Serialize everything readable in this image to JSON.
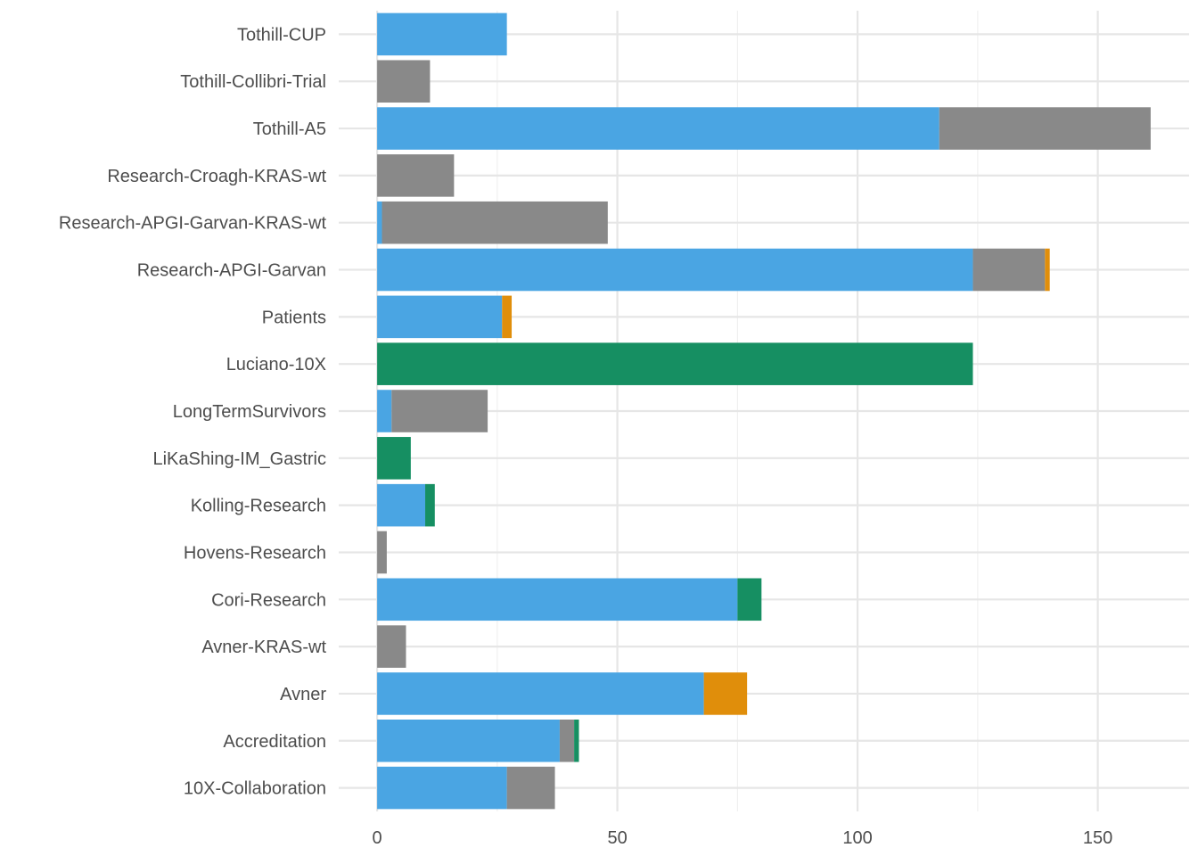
{
  "chart_data": {
    "type": "bar",
    "orientation": "horizontal",
    "stacked": true,
    "categories": [
      "Tothill-CUP",
      "Tothill-Collibri-Trial",
      "Tothill-A5",
      "Research-Croagh-KRAS-wt",
      "Research-APGI-Garvan-KRAS-wt",
      "Research-APGI-Garvan",
      "Patients",
      "Luciano-10X",
      "LongTermSurvivors",
      "LiKaShing-IM_Gastric",
      "Kolling-Research",
      "Hovens-Research",
      "Cori-Research",
      "Avner-KRAS-wt",
      "Avner",
      "Accreditation",
      "10X-Collaboration"
    ],
    "series": [
      {
        "color": "#4aa5e3",
        "values": [
          27,
          0,
          117,
          0,
          1,
          124,
          26,
          0,
          3,
          0,
          10,
          0,
          75,
          0,
          68,
          38,
          27
        ]
      },
      {
        "color": "#898989",
        "values": [
          0,
          11,
          44,
          16,
          47,
          15,
          0,
          0,
          20,
          0,
          0,
          2,
          0,
          6,
          0,
          3,
          10
        ]
      },
      {
        "color": "#e08e0b",
        "values": [
          0,
          0,
          0,
          0,
          0,
          1,
          2,
          0,
          0,
          0,
          0,
          0,
          0,
          0,
          9,
          0,
          0
        ]
      },
      {
        "color": "#168f62",
        "values": [
          0,
          0,
          0,
          0,
          0,
          0,
          0,
          124,
          0,
          7,
          2,
          0,
          5,
          0,
          0,
          1,
          0
        ]
      }
    ],
    "x_ticks": [
      "0",
      "50",
      "100",
      "150"
    ],
    "xlim": [
      -8,
      169
    ],
    "xlabel": "",
    "ylabel": "",
    "grid": true,
    "legend": "none"
  }
}
